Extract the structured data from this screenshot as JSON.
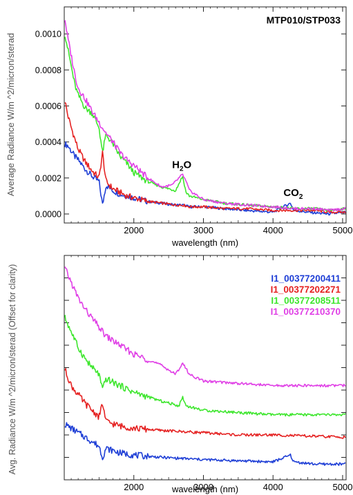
{
  "charts": [
    {
      "type": "line",
      "title": "MTP010/STP033",
      "xlabel": "wavelength (nm)",
      "ylabel": "Average Radiance W/m ^2/micron/sterad",
      "xlim": [
        1000,
        5050
      ],
      "ylim": [
        -5e-05,
        0.00115
      ],
      "x_ticks": [
        2000,
        3000,
        4000,
        5000
      ],
      "x_tick_labels": [
        "2000",
        "3000",
        "4000",
        "5000"
      ],
      "y_ticks": [
        0.0,
        0.0002,
        0.0004,
        0.0006,
        0.0008,
        0.001
      ],
      "y_tick_labels": [
        "0.0000",
        "0.0002",
        "0.0004",
        "0.0006",
        "0.0008",
        "0.0010"
      ],
      "annotations": [
        {
          "text": "H",
          "sub": "2",
          "tail": "O",
          "x": 2550,
          "y": 0.000255
        },
        {
          "text": "CO",
          "sub": "2",
          "tail": "",
          "x": 4150,
          "y": 0.0001
        }
      ],
      "series": [
        {
          "name": "I1_00377200411",
          "color": "#1f3fd6",
          "x": [
            1000,
            1050,
            1100,
            1150,
            1200,
            1300,
            1400,
            1500,
            1550,
            1600,
            1700,
            1800,
            1900,
            2000,
            2200,
            2400,
            2600,
            2700,
            2800,
            3000,
            3300,
            3600,
            4000,
            4250,
            4300,
            4500,
            4800,
            5050
          ],
          "y": [
            0.00039,
            0.00038,
            0.00035,
            0.00032,
            0.0003,
            0.00025,
            0.00021,
            0.00018,
            5e-05,
            0.00016,
            0.00013,
            0.00011,
            0.0001,
            9e-05,
            7e-05,
            6e-05,
            5e-05,
            5e-05,
            4e-05,
            4e-05,
            3e-05,
            2e-05,
            1e-05,
            6e-05,
            2e-05,
            1e-05,
            0.0,
            1e-05
          ]
        },
        {
          "name": "I1_00377202271",
          "color": "#e52222",
          "x": [
            1000,
            1050,
            1100,
            1150,
            1200,
            1300,
            1400,
            1500,
            1550,
            1600,
            1700,
            1800,
            1900,
            2000,
            2200,
            2400,
            2600,
            2700,
            2800,
            3000,
            3300,
            3600,
            4000,
            4300,
            4600,
            4800,
            5050
          ],
          "y": [
            0.00065,
            0.00055,
            0.00048,
            0.00042,
            0.00036,
            0.00029,
            0.00024,
            0.0002,
            0.00034,
            0.00018,
            0.00014,
            0.00012,
            0.0001,
            9e-05,
            7e-05,
            6e-05,
            5e-05,
            5e-05,
            4e-05,
            4e-05,
            3e-05,
            3e-05,
            2e-05,
            2e-05,
            2e-05,
            1e-05,
            1e-05
          ]
        },
        {
          "name": "I1_00377208511",
          "color": "#3ee62e",
          "x": [
            1000,
            1050,
            1100,
            1150,
            1200,
            1300,
            1400,
            1500,
            1550,
            1600,
            1700,
            1800,
            1900,
            2000,
            2200,
            2400,
            2600,
            2700,
            2750,
            2800,
            3000,
            3300,
            3600,
            4000,
            4300,
            4600,
            4800,
            5050
          ],
          "y": [
            0.00102,
            0.00092,
            0.00082,
            0.00072,
            0.00066,
            0.00059,
            0.00056,
            0.00048,
            0.00034,
            0.00044,
            0.00039,
            0.00032,
            0.00028,
            0.00023,
            0.00018,
            0.00015,
            0.00013,
            0.00021,
            0.00012,
            0.0001,
            8e-05,
            6e-05,
            5e-05,
            4e-05,
            3e-05,
            3e-05,
            2e-05,
            3e-05
          ]
        },
        {
          "name": "I1_00377210370",
          "color": "#e040e6",
          "x": [
            1000,
            1050,
            1100,
            1150,
            1200,
            1300,
            1400,
            1500,
            1550,
            1600,
            1700,
            1800,
            1900,
            2000,
            2200,
            2400,
            2550,
            2650,
            2700,
            2750,
            2800,
            3000,
            3300,
            3600,
            4000,
            4300,
            4600,
            4800,
            5050
          ],
          "y": [
            0.00111,
            0.00098,
            0.00088,
            0.00078,
            0.0007,
            0.00064,
            0.00057,
            0.00051,
            0.00048,
            0.00045,
            0.0004,
            0.00034,
            0.0003,
            0.00027,
            0.0002,
            0.00015,
            0.00016,
            0.0002,
            0.00022,
            0.00018,
            0.00013,
            8e-05,
            6e-05,
            5e-05,
            4e-05,
            3e-05,
            3e-05,
            2e-05,
            3e-05
          ]
        }
      ]
    },
    {
      "type": "line",
      "xlabel": "wavelength (nm)",
      "ylabel": "Avg. Radiance W/m ^2/micron/sterad (Offset for clarity)",
      "xlim": [
        1000,
        5050
      ],
      "ylim": [
        0,
        1
      ],
      "x_ticks": [
        2000,
        3000,
        4000,
        5000
      ],
      "x_tick_labels": [
        "2000",
        "3000",
        "4000",
        "5000"
      ],
      "y_ticks": [
        0.1,
        0.2,
        0.3,
        0.4,
        0.5,
        0.6,
        0.7,
        0.8,
        0.9
      ],
      "legend_position": "top-right",
      "series": [
        {
          "name": "I1_00377200411",
          "color": "#1f3fd6",
          "x": [
            1000,
            1100,
            1200,
            1300,
            1400,
            1500,
            1550,
            1600,
            1800,
            2000,
            2400,
            2700,
            3000,
            3500,
            4000,
            4250,
            4300,
            4600,
            5050
          ],
          "y": [
            0.25,
            0.23,
            0.21,
            0.19,
            0.17,
            0.15,
            0.1,
            0.14,
            0.12,
            0.11,
            0.1,
            0.095,
            0.09,
            0.085,
            0.08,
            0.11,
            0.08,
            0.07,
            0.07
          ]
        },
        {
          "name": "I1_00377202271",
          "color": "#e52222",
          "x": [
            1000,
            1100,
            1200,
            1300,
            1400,
            1500,
            1550,
            1600,
            1800,
            2000,
            2400,
            2700,
            3000,
            3500,
            4000,
            4500,
            5050
          ],
          "y": [
            0.5,
            0.42,
            0.38,
            0.34,
            0.31,
            0.28,
            0.34,
            0.26,
            0.24,
            0.23,
            0.22,
            0.215,
            0.21,
            0.2,
            0.2,
            0.195,
            0.19
          ]
        },
        {
          "name": "I1_00377208511",
          "color": "#3ee62e",
          "x": [
            1000,
            1100,
            1200,
            1300,
            1400,
            1500,
            1550,
            1600,
            1800,
            2000,
            2400,
            2650,
            2700,
            2750,
            3000,
            3500,
            4000,
            4500,
            5050
          ],
          "y": [
            0.73,
            0.66,
            0.59,
            0.54,
            0.5,
            0.47,
            0.4,
            0.45,
            0.42,
            0.39,
            0.35,
            0.33,
            0.37,
            0.33,
            0.31,
            0.3,
            0.29,
            0.29,
            0.29
          ]
        },
        {
          "name": "I1_00377210370",
          "color": "#e040e6",
          "x": [
            1000,
            1100,
            1200,
            1300,
            1400,
            1500,
            1600,
            1800,
            2000,
            2400,
            2600,
            2700,
            2800,
            3000,
            3500,
            4000,
            4500,
            5050
          ],
          "y": [
            0.95,
            0.88,
            0.81,
            0.76,
            0.72,
            0.68,
            0.64,
            0.6,
            0.56,
            0.51,
            0.47,
            0.52,
            0.47,
            0.44,
            0.43,
            0.42,
            0.42,
            0.42
          ]
        }
      ]
    }
  ]
}
